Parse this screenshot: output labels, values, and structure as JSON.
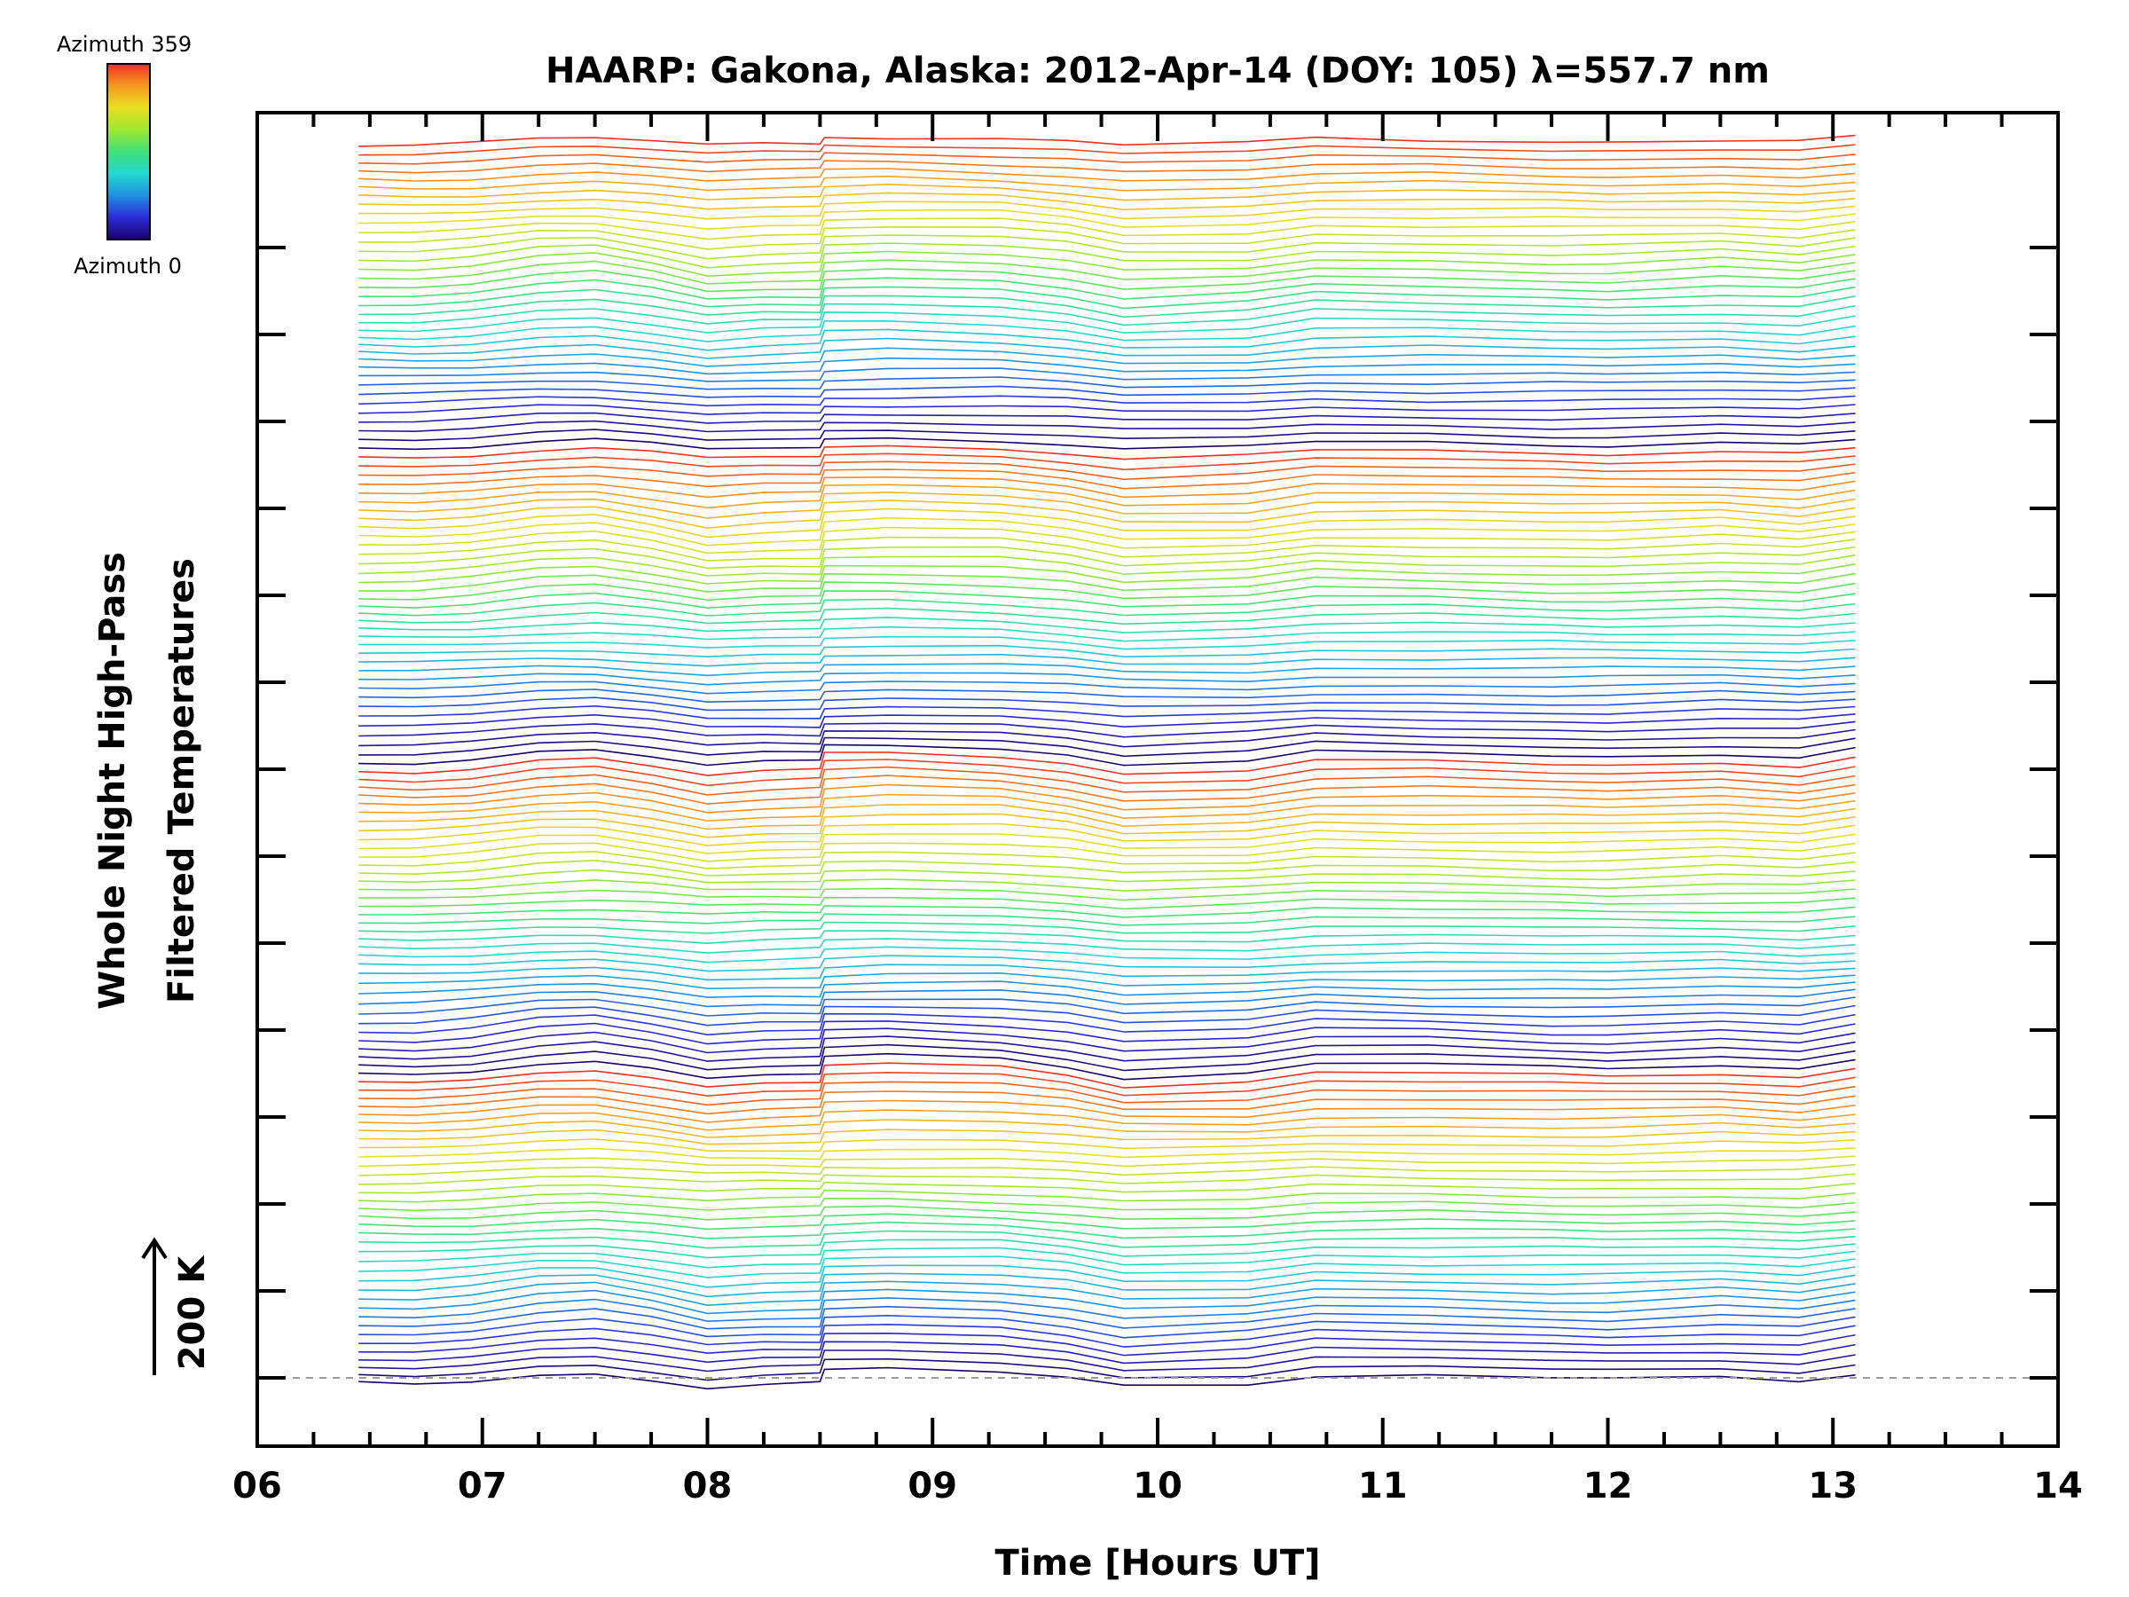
{
  "chart_data": {
    "type": "line",
    "title": "HAARP: Gakona,  Alaska: 2012-Apr-14 (DOY: 105) λ=557.7 nm",
    "xlabel": "Time [Hours UT]",
    "ylabel_line1": "Whole Night High-Pass",
    "ylabel_line2": "Filtered Temperatures",
    "scale_label": "200 K",
    "colorbar": {
      "top_label": "Azimuth 359",
      "bottom_label": "Azimuth 0",
      "colors": [
        "#1a0066",
        "#2b2bd9",
        "#1f8fe0",
        "#22d9d0",
        "#3fe07a",
        "#9fe830",
        "#e8e020",
        "#f59a20",
        "#f03020"
      ]
    },
    "xlim": [
      6,
      14
    ],
    "xticks": [
      "06",
      "07",
      "08",
      "09",
      "10",
      "11",
      "12",
      "13",
      "14"
    ],
    "data_x_range": [
      6.45,
      13.1
    ],
    "n_series": 144,
    "series_per_cycle": 36,
    "baseline_dashed": true,
    "common_profile_offsets_K": {
      "x": [
        6.45,
        6.7,
        6.95,
        7.25,
        7.5,
        7.75,
        8.0,
        8.25,
        8.5,
        8.52,
        8.8,
        9.3,
        9.6,
        9.85,
        10.4,
        10.7,
        11.2,
        11.75,
        12.0,
        12.5,
        12.85,
        13.1
      ],
      "y": [
        -20,
        -22,
        -12,
        12,
        18,
        -5,
        -35,
        -25,
        -22,
        25,
        30,
        22,
        2,
        -28,
        -18,
        8,
        5,
        -2,
        -4,
        6,
        -5,
        20
      ]
    },
    "series_spacing_K": 25
  }
}
